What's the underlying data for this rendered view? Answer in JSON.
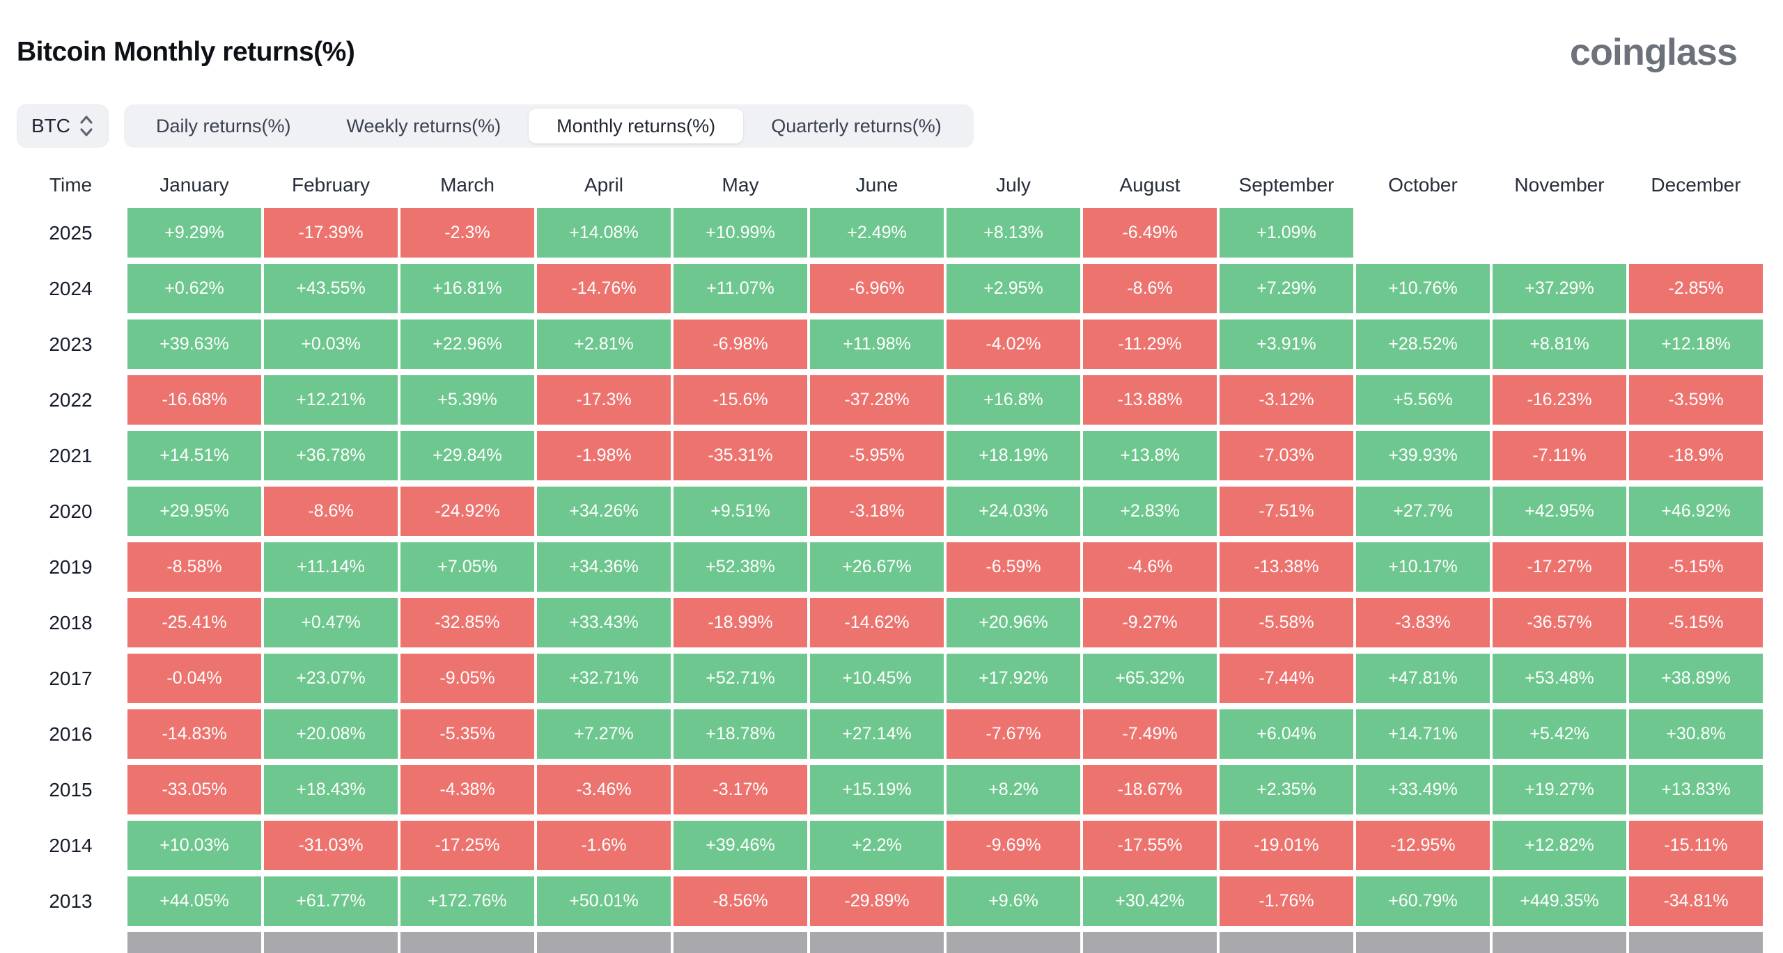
{
  "header": {
    "title": "Bitcoin Monthly returns(%)",
    "logo": "coinglass"
  },
  "controls": {
    "symbol": "BTC",
    "tabs": [
      {
        "label": "Daily returns(%)",
        "active": false
      },
      {
        "label": "Weekly returns(%)",
        "active": false
      },
      {
        "label": "Monthly returns(%)",
        "active": true
      },
      {
        "label": "Quarterly returns(%)",
        "active": false
      }
    ]
  },
  "colors": {
    "positive": "#6ec78e",
    "negative": "#ed736f",
    "partial_row": "#a9a9ad"
  },
  "chart_data": {
    "type": "heatmap",
    "title": "Bitcoin Monthly returns(%)",
    "columns": [
      "Time",
      "January",
      "February",
      "March",
      "April",
      "May",
      "June",
      "July",
      "August",
      "September",
      "October",
      "November",
      "December"
    ],
    "rows": [
      {
        "year": "2025",
        "values": [
          "+9.29%",
          "-17.39%",
          "-2.3%",
          "+14.08%",
          "+10.99%",
          "+2.49%",
          "+8.13%",
          "-6.49%",
          "+1.09%",
          "",
          "",
          ""
        ]
      },
      {
        "year": "2024",
        "values": [
          "+0.62%",
          "+43.55%",
          "+16.81%",
          "-14.76%",
          "+11.07%",
          "-6.96%",
          "+2.95%",
          "-8.6%",
          "+7.29%",
          "+10.76%",
          "+37.29%",
          "-2.85%"
        ]
      },
      {
        "year": "2023",
        "values": [
          "+39.63%",
          "+0.03%",
          "+22.96%",
          "+2.81%",
          "-6.98%",
          "+11.98%",
          "-4.02%",
          "-11.29%",
          "+3.91%",
          "+28.52%",
          "+8.81%",
          "+12.18%"
        ]
      },
      {
        "year": "2022",
        "values": [
          "-16.68%",
          "+12.21%",
          "+5.39%",
          "-17.3%",
          "-15.6%",
          "-37.28%",
          "+16.8%",
          "-13.88%",
          "-3.12%",
          "+5.56%",
          "-16.23%",
          "-3.59%"
        ]
      },
      {
        "year": "2021",
        "values": [
          "+14.51%",
          "+36.78%",
          "+29.84%",
          "-1.98%",
          "-35.31%",
          "-5.95%",
          "+18.19%",
          "+13.8%",
          "-7.03%",
          "+39.93%",
          "-7.11%",
          "-18.9%"
        ]
      },
      {
        "year": "2020",
        "values": [
          "+29.95%",
          "-8.6%",
          "-24.92%",
          "+34.26%",
          "+9.51%",
          "-3.18%",
          "+24.03%",
          "+2.83%",
          "-7.51%",
          "+27.7%",
          "+42.95%",
          "+46.92%"
        ]
      },
      {
        "year": "2019",
        "values": [
          "-8.58%",
          "+11.14%",
          "+7.05%",
          "+34.36%",
          "+52.38%",
          "+26.67%",
          "-6.59%",
          "-4.6%",
          "-13.38%",
          "+10.17%",
          "-17.27%",
          "-5.15%"
        ]
      },
      {
        "year": "2018",
        "values": [
          "-25.41%",
          "+0.47%",
          "-32.85%",
          "+33.43%",
          "-18.99%",
          "-14.62%",
          "+20.96%",
          "-9.27%",
          "-5.58%",
          "-3.83%",
          "-36.57%",
          "-5.15%"
        ]
      },
      {
        "year": "2017",
        "values": [
          "-0.04%",
          "+23.07%",
          "-9.05%",
          "+32.71%",
          "+52.71%",
          "+10.45%",
          "+17.92%",
          "+65.32%",
          "-7.44%",
          "+47.81%",
          "+53.48%",
          "+38.89%"
        ]
      },
      {
        "year": "2016",
        "values": [
          "-14.83%",
          "+20.08%",
          "-5.35%",
          "+7.27%",
          "+18.78%",
          "+27.14%",
          "-7.67%",
          "-7.49%",
          "+6.04%",
          "+14.71%",
          "+5.42%",
          "+30.8%"
        ]
      },
      {
        "year": "2015",
        "values": [
          "-33.05%",
          "+18.43%",
          "-4.38%",
          "-3.46%",
          "-3.17%",
          "+15.19%",
          "+8.2%",
          "-18.67%",
          "+2.35%",
          "+33.49%",
          "+19.27%",
          "+13.83%"
        ]
      },
      {
        "year": "2014",
        "values": [
          "+10.03%",
          "-31.03%",
          "-17.25%",
          "-1.6%",
          "+39.46%",
          "+2.2%",
          "-9.69%",
          "-17.55%",
          "-19.01%",
          "-12.95%",
          "+12.82%",
          "-15.11%"
        ]
      },
      {
        "year": "2013",
        "values": [
          "+44.05%",
          "+61.77%",
          "+172.76%",
          "+50.01%",
          "-8.56%",
          "-29.89%",
          "+9.6%",
          "+30.42%",
          "-1.76%",
          "+60.79%",
          "+449.35%",
          "-34.81%"
        ]
      }
    ],
    "partial_bottom_row": true
  }
}
